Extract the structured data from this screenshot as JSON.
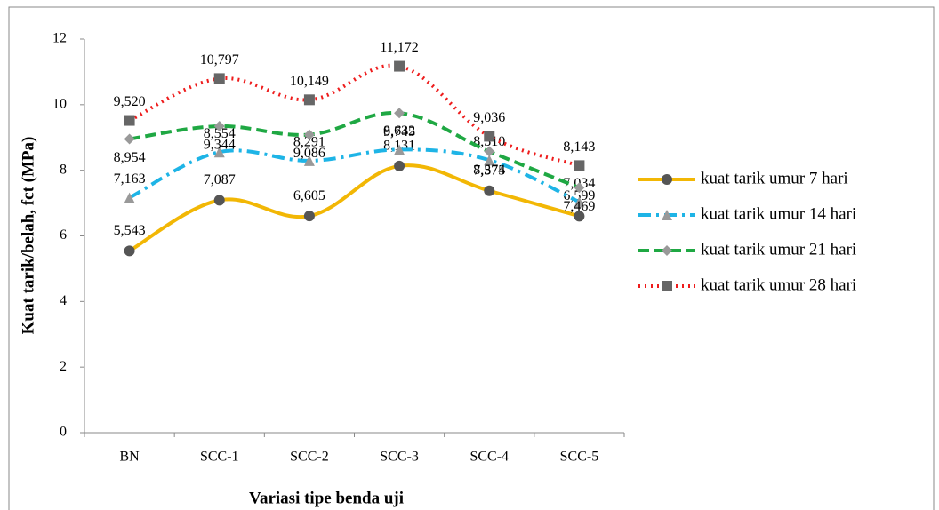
{
  "chart_data": {
    "type": "line",
    "y_label": "Kuat tarik/belah, fct (MPa)",
    "x_label": "Variasi tipe benda uji",
    "categories": [
      "BN",
      "SCC-1",
      "SCC-2",
      "SCC-3",
      "SCC-4",
      "SCC-5"
    ],
    "series": [
      {
        "name": "kuat tarik umur 7 hari",
        "color": "#f2b705",
        "dash": "solid",
        "marker": "circle",
        "values": [
          5.543,
          7.087,
          6.605,
          8.131,
          7.375,
          6.599
        ],
        "value_labels": [
          "5,543",
          "7,087",
          "6,605",
          "8,131",
          "7,375",
          "6,599"
        ]
      },
      {
        "name": "kuat tarik umur 14 hari",
        "color": "#1eb4e6",
        "dash": "dashdot",
        "marker": "triangle",
        "values": [
          7.163,
          8.554,
          8.291,
          8.632,
          8.31,
          7.034
        ],
        "value_labels": [
          "7,163",
          "8,554",
          "8,291",
          "8,632",
          "8,310",
          "7,034"
        ]
      },
      {
        "name": "kuat tarik umur 21 hari",
        "color": "#1fa843",
        "dash": "dashed",
        "marker": "diamond",
        "values": [
          8.954,
          9.344,
          9.086,
          9.745,
          8.574,
          7.469
        ],
        "value_labels": [
          "8,954",
          "9,344",
          "9,086",
          "9,745",
          "8,574",
          "7,469"
        ]
      },
      {
        "name": "kuat tarik umur 28 hari",
        "color": "#ee1c1c",
        "dash": "dotted",
        "marker": "square",
        "values": [
          9.52,
          10.797,
          10.149,
          11.172,
          9.036,
          8.143
        ],
        "value_labels": [
          "9,520",
          "10,797",
          "10,149",
          "11,172",
          "9,036",
          "8,143"
        ]
      }
    ],
    "ylim": [
      0,
      12
    ],
    "yticks": [
      0,
      2,
      4,
      6,
      8,
      10,
      12
    ],
    "grid": false,
    "legend": "right"
  }
}
